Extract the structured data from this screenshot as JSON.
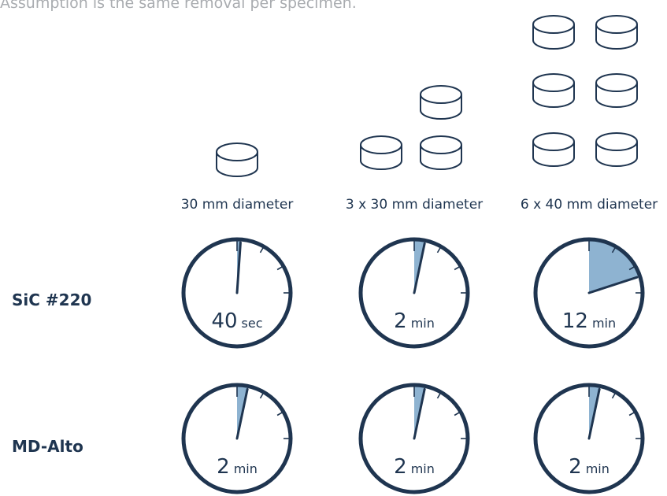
{
  "caption": "Assumption is the same removal per specimen.",
  "columns": [
    {
      "label": "30 mm diameter",
      "specimen_count": 1
    },
    {
      "label": "3 x 30 mm diameter",
      "specimen_count": 3
    },
    {
      "label": "6 x 40 mm diameter",
      "specimen_count": 6
    }
  ],
  "rows": [
    {
      "label": "SiC #220",
      "timers": [
        {
          "value": "40",
          "unit": "sec",
          "fraction": 0.011
        },
        {
          "value": "2",
          "unit": "min",
          "fraction": 0.033
        },
        {
          "value": "12",
          "unit": "min",
          "fraction": 0.2
        }
      ]
    },
    {
      "label": "MD-Alto",
      "timers": [
        {
          "value": "2",
          "unit": "min",
          "fraction": 0.033
        },
        {
          "value": "2",
          "unit": "min",
          "fraction": 0.033
        },
        {
          "value": "2",
          "unit": "min",
          "fraction": 0.033
        }
      ]
    }
  ],
  "colors": {
    "dark": "#1f3550",
    "fill": "#8eb3d1",
    "caption": "#a9acb0"
  },
  "icons": {
    "specimen": "cylinder-specimen-icon",
    "timer": "stopwatch-icon"
  }
}
